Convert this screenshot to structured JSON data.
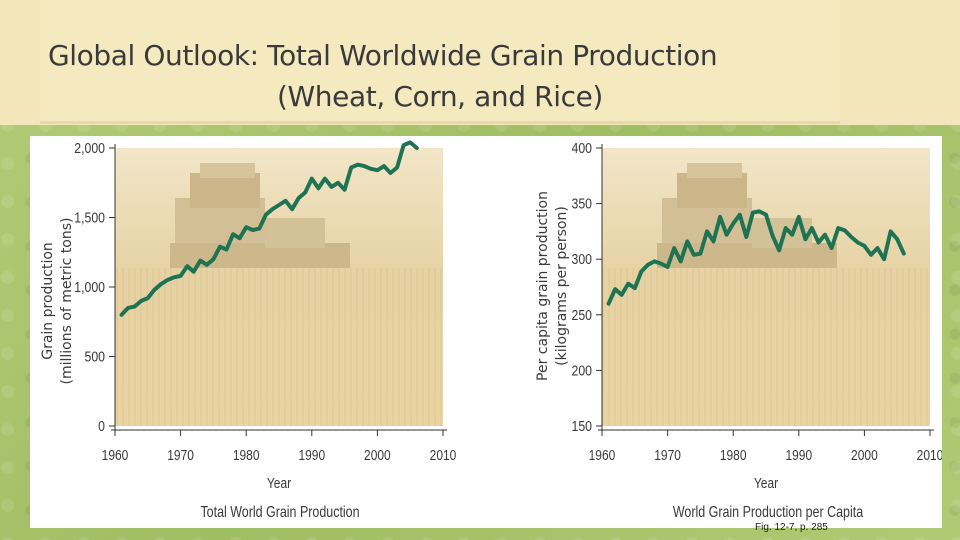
{
  "slide": {
    "title_line1": "Global Outlook: Total Worldwide Grain Production",
    "title_line2": "(Wheat, Corn, and Rice)",
    "caption": "Fig. 12-7, p. 285"
  },
  "colors": {
    "line": "#1e7352",
    "photo_tint": "#e2cc9a",
    "axis": "#333333"
  },
  "chart_data": [
    {
      "type": "line",
      "title": "Total World Grain Production",
      "xlabel": "Year",
      "ylabel": "Grain production\n(millions of metric tons)",
      "xlim": [
        1960,
        2010
      ],
      "ylim": [
        0,
        2000
      ],
      "xticks": [
        1960,
        1970,
        1980,
        1990,
        2000,
        2010
      ],
      "yticks": [
        0,
        500,
        1000,
        1500,
        2000
      ],
      "ytick_labels": [
        "0",
        "500",
        "1,000",
        "1,500",
        "2,000"
      ],
      "series": [
        {
          "name": "World grain production",
          "x": [
            1961,
            1962,
            1963,
            1964,
            1965,
            1966,
            1967,
            1968,
            1969,
            1970,
            1971,
            1972,
            1973,
            1974,
            1975,
            1976,
            1977,
            1978,
            1979,
            1980,
            1981,
            1982,
            1983,
            1984,
            1985,
            1986,
            1987,
            1988,
            1989,
            1990,
            1991,
            1992,
            1993,
            1994,
            1995,
            1996,
            1997,
            1998,
            1999,
            2000,
            2001,
            2002,
            2003,
            2004,
            2005,
            2006
          ],
          "y": [
            800,
            850,
            860,
            900,
            920,
            980,
            1020,
            1050,
            1070,
            1080,
            1150,
            1110,
            1190,
            1160,
            1200,
            1290,
            1270,
            1380,
            1350,
            1430,
            1410,
            1420,
            1520,
            1560,
            1590,
            1620,
            1560,
            1640,
            1680,
            1780,
            1710,
            1780,
            1720,
            1750,
            1700,
            1860,
            1880,
            1870,
            1850,
            1840,
            1870,
            1820,
            1860,
            2020,
            2040,
            2000
          ]
        }
      ]
    },
    {
      "type": "line",
      "title": "World Grain Production per Capita",
      "xlabel": "Year",
      "ylabel": "Per capita grain production\n(kilograms per person)",
      "xlim": [
        1960,
        2010
      ],
      "ylim": [
        150,
        400
      ],
      "xticks": [
        1960,
        1970,
        1980,
        1990,
        2000,
        2010
      ],
      "yticks": [
        150,
        200,
        250,
        300,
        350,
        400
      ],
      "ytick_labels": [
        "150",
        "200",
        "250",
        "300",
        "350",
        "400"
      ],
      "series": [
        {
          "name": "Per capita grain production",
          "x": [
            1961,
            1962,
            1963,
            1964,
            1965,
            1966,
            1967,
            1968,
            1969,
            1970,
            1971,
            1972,
            1973,
            1974,
            1975,
            1976,
            1977,
            1978,
            1979,
            1980,
            1981,
            1982,
            1983,
            1984,
            1985,
            1986,
            1987,
            1988,
            1989,
            1990,
            1991,
            1992,
            1993,
            1994,
            1995,
            1996,
            1997,
            1998,
            1999,
            2000,
            2001,
            2002,
            2003,
            2004,
            2005,
            2006
          ],
          "y": [
            260,
            273,
            268,
            278,
            274,
            289,
            295,
            298,
            296,
            293,
            310,
            298,
            316,
            304,
            305,
            325,
            316,
            338,
            322,
            332,
            340,
            320,
            342,
            343,
            340,
            321,
            308,
            328,
            322,
            338,
            318,
            328,
            315,
            322,
            310,
            328,
            326,
            320,
            315,
            312,
            304,
            310,
            300,
            325,
            318,
            305
          ]
        }
      ]
    }
  ]
}
